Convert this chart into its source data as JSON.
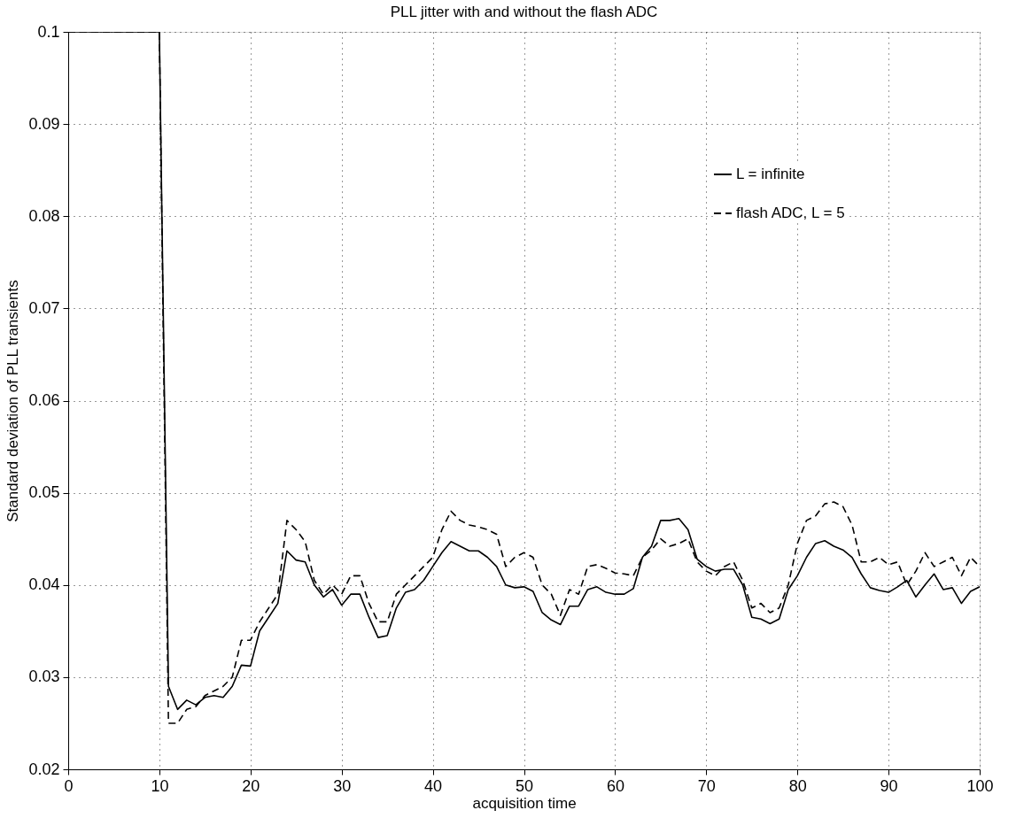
{
  "chart_data": {
    "type": "line",
    "title": "PLL jitter with and without the flash ADC",
    "xlabel": "acquisition time",
    "ylabel": "Standard deviation of PLL transients",
    "x": [
      0,
      1,
      2,
      3,
      4,
      5,
      6,
      7,
      8,
      9,
      10,
      11,
      12,
      13,
      14,
      15,
      16,
      17,
      18,
      19,
      20,
      21,
      22,
      23,
      24,
      25,
      26,
      27,
      28,
      29,
      30,
      31,
      32,
      33,
      34,
      35,
      36,
      37,
      38,
      39,
      40,
      41,
      42,
      43,
      44,
      45,
      46,
      47,
      48,
      49,
      50,
      51,
      52,
      53,
      54,
      55,
      56,
      57,
      58,
      59,
      60,
      61,
      62,
      63,
      64,
      65,
      66,
      67,
      68,
      69,
      70,
      71,
      72,
      73,
      74,
      75,
      76,
      77,
      78,
      79,
      80,
      81,
      82,
      83,
      84,
      85,
      86,
      87,
      88,
      89,
      90,
      91,
      92,
      93,
      94,
      95,
      96,
      97,
      98,
      99,
      100
    ],
    "series": [
      {
        "name": "L = infinite",
        "color": "#000000",
        "line_style": "solid",
        "values": [
          0.1,
          0.1,
          0.1,
          0.1,
          0.1,
          0.1,
          0.1,
          0.1,
          0.1,
          0.1,
          0.1,
          0.029,
          0.0265,
          0.0275,
          0.027,
          0.0278,
          0.028,
          0.0278,
          0.029,
          0.0313,
          0.0312,
          0.035,
          0.0365,
          0.038,
          0.0437,
          0.0427,
          0.0425,
          0.04,
          0.0387,
          0.0395,
          0.0378,
          0.039,
          0.039,
          0.0365,
          0.0343,
          0.0345,
          0.0375,
          0.0392,
          0.0395,
          0.0405,
          0.042,
          0.0435,
          0.0447,
          0.0442,
          0.0437,
          0.0437,
          0.043,
          0.042,
          0.04,
          0.0397,
          0.0398,
          0.0393,
          0.037,
          0.0362,
          0.0357,
          0.0377,
          0.0377,
          0.0395,
          0.0398,
          0.0392,
          0.039,
          0.039,
          0.0396,
          0.043,
          0.0442,
          0.047,
          0.047,
          0.0472,
          0.046,
          0.0428,
          0.042,
          0.0415,
          0.0417,
          0.0417,
          0.04,
          0.0365,
          0.0363,
          0.0358,
          0.0363,
          0.0395,
          0.041,
          0.043,
          0.0445,
          0.0448,
          0.0442,
          0.0438,
          0.043,
          0.0412,
          0.0397,
          0.0394,
          0.0392,
          0.0398,
          0.0405,
          0.0387,
          0.04,
          0.0412,
          0.0395,
          0.0397,
          0.038,
          0.0393,
          0.0398
        ]
      },
      {
        "name": "flash ADC, L = 5",
        "color": "#000000",
        "line_style": "dashed",
        "values": [
          0.1,
          0.1,
          0.1,
          0.1,
          0.1,
          0.1,
          0.1,
          0.1,
          0.1,
          0.1,
          0.1,
          0.025,
          0.025,
          0.0265,
          0.0268,
          0.028,
          0.0285,
          0.029,
          0.03,
          0.034,
          0.034,
          0.036,
          0.0375,
          0.039,
          0.047,
          0.046,
          0.0447,
          0.0405,
          0.039,
          0.04,
          0.039,
          0.041,
          0.041,
          0.038,
          0.036,
          0.036,
          0.039,
          0.04,
          0.041,
          0.042,
          0.043,
          0.046,
          0.048,
          0.047,
          0.0465,
          0.0463,
          0.046,
          0.0455,
          0.042,
          0.043,
          0.0435,
          0.043,
          0.04,
          0.039,
          0.0367,
          0.0395,
          0.039,
          0.042,
          0.0422,
          0.0418,
          0.0413,
          0.0412,
          0.041,
          0.043,
          0.0438,
          0.045,
          0.0442,
          0.0445,
          0.045,
          0.0425,
          0.0415,
          0.041,
          0.042,
          0.0425,
          0.0405,
          0.0375,
          0.038,
          0.037,
          0.0375,
          0.04,
          0.0445,
          0.047,
          0.0475,
          0.0488,
          0.049,
          0.0485,
          0.0465,
          0.0425,
          0.0425,
          0.043,
          0.0422,
          0.0425,
          0.04,
          0.0415,
          0.0435,
          0.042,
          0.0425,
          0.043,
          0.041,
          0.043,
          0.042
        ]
      }
    ],
    "xlim": [
      0,
      100
    ],
    "xticks": [
      0,
      10,
      20,
      30,
      40,
      50,
      60,
      70,
      80,
      90,
      100
    ],
    "ylim": [
      0.02,
      0.1
    ],
    "yticks": [
      0.02,
      0.03,
      0.04,
      0.05,
      0.06,
      0.07,
      0.08,
      0.09,
      0.1
    ],
    "grid": true,
    "legend": "top right",
    "marker": "none"
  }
}
